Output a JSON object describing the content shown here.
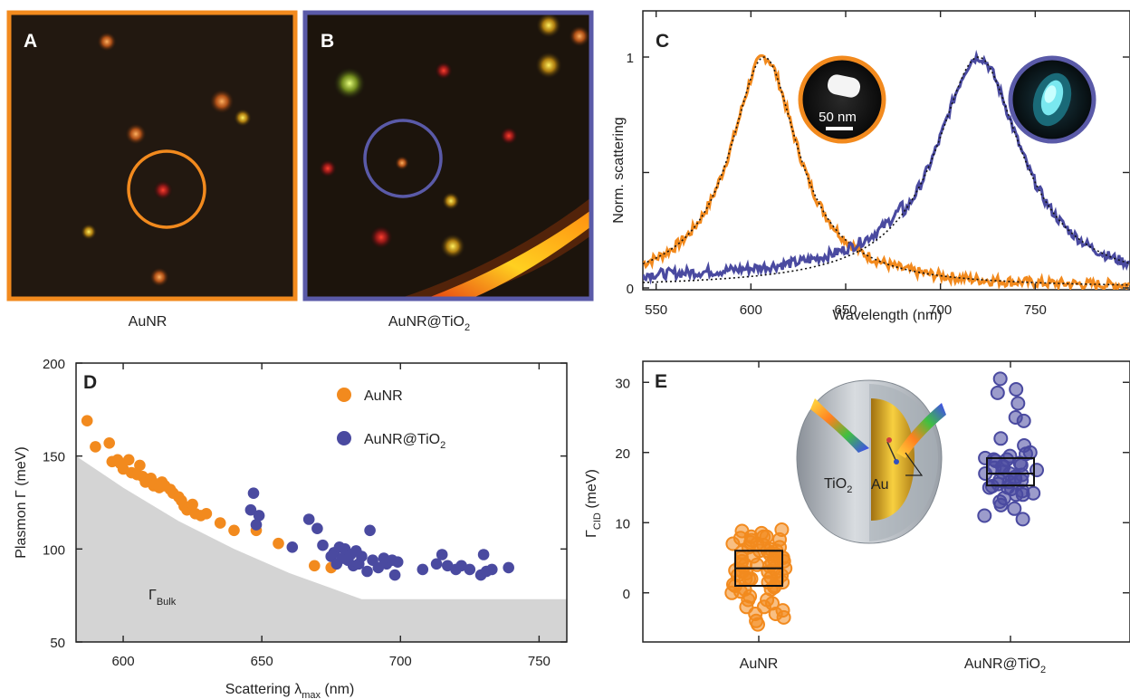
{
  "colors": {
    "orange": "#f28a1e",
    "purple": "#4a4aa0",
    "shade": "#d4d4d4",
    "frame_orange": "#f28a1e",
    "frame_purple": "#5a5aa8"
  },
  "panelA": {
    "letter": "A",
    "caption": "AuNR"
  },
  "panelB": {
    "letter": "B",
    "caption_main": "AuNR@TiO",
    "caption_sub": "2"
  },
  "panelC": {
    "letter": "C",
    "scale_label": "50 nm",
    "ylabel": "Norm. scattering",
    "xlabel": "Wavelength (nm)",
    "yticks": [
      "0",
      "1"
    ],
    "xticks": [
      "550",
      "600",
      "650",
      "700",
      "750"
    ]
  },
  "panelD": {
    "letter": "D",
    "ylabel": "Plasmon Γ (meV)",
    "xlabel_main": "Scattering λ",
    "xlabel_sub": "max",
    "xlabel_tail": " (nm)",
    "bulk_main": "Γ",
    "bulk_sub": "Bulk",
    "legend": {
      "aunr": "AuNR",
      "tio2_main": "AuNR@TiO",
      "tio2_sub": "2"
    },
    "yticks": [
      "50",
      "100",
      "150",
      "200"
    ],
    "xticks": [
      "600",
      "650",
      "700",
      "750"
    ]
  },
  "panelE": {
    "letter": "E",
    "ylabel_main": "Γ",
    "ylabel_sub": "CID",
    "ylabel_tail": " (meV)",
    "yticks": [
      "0",
      "10",
      "20",
      "30"
    ],
    "xcat1": "AuNR",
    "xcat2_main": "AuNR@TiO",
    "xcat2_sub": "2",
    "inset_tio2_main": "TiO",
    "inset_tio2_sub": "2",
    "inset_au": "Au"
  },
  "chart_data": [
    {
      "type": "line",
      "panel": "C",
      "xlabel": "Wavelength (nm)",
      "ylabel": "Norm. scattering",
      "xlim": [
        543,
        800
      ],
      "ylim": [
        0,
        1.1
      ],
      "series": [
        {
          "name": "AuNR",
          "type": "lorentzian",
          "center": 607,
          "fwhm": 44,
          "baseline": 0.0
        },
        {
          "name": "AuNR@TiO2",
          "type": "lorentzian",
          "center": 720,
          "fwhm": 55,
          "baseline": 0.0
        }
      ]
    },
    {
      "type": "scatter",
      "panel": "D",
      "xlabel": "Scattering λmax (nm)",
      "ylabel": "Plasmon Γ (meV)",
      "xlim": [
        583,
        760
      ],
      "ylim": [
        50,
        200
      ],
      "series": [
        {
          "name": "AuNR",
          "points": [
            [
              587,
              169
            ],
            [
              590,
              155
            ],
            [
              595,
              157
            ],
            [
              596,
              147
            ],
            [
              598,
              148
            ],
            [
              599,
              146
            ],
            [
              600,
              143
            ],
            [
              602,
              148
            ],
            [
              603,
              141
            ],
            [
              605,
              140
            ],
            [
              606,
              145
            ],
            [
              607,
              139
            ],
            [
              608,
              136
            ],
            [
              610,
              138
            ],
            [
              611,
              134
            ],
            [
              612,
              135
            ],
            [
              613,
              133
            ],
            [
              614,
              136
            ],
            [
              615,
              134
            ],
            [
              617,
              132
            ],
            [
              618,
              130
            ],
            [
              620,
              128
            ],
            [
              621,
              126
            ],
            [
              622,
              123
            ],
            [
              623,
              121
            ],
            [
              625,
              124
            ],
            [
              626,
              119
            ],
            [
              628,
              118
            ],
            [
              630,
              119
            ],
            [
              635,
              114
            ],
            [
              640,
              110
            ],
            [
              648,
              110
            ],
            [
              656,
              103
            ],
            [
              669,
              91
            ],
            [
              675,
              90
            ]
          ]
        },
        {
          "name": "AuNR@TiO2",
          "points": [
            [
              647,
              130
            ],
            [
              646,
              121
            ],
            [
              649,
              118
            ],
            [
              648,
              113
            ],
            [
              661,
              101
            ],
            [
              667,
              116
            ],
            [
              670,
              111
            ],
            [
              672,
              102
            ],
            [
              675,
              96
            ],
            [
              676,
              98
            ],
            [
              677,
              92
            ],
            [
              678,
              101
            ],
            [
              679,
              95
            ],
            [
              680,
              100
            ],
            [
              681,
              94
            ],
            [
              682,
              97
            ],
            [
              683,
              91
            ],
            [
              684,
              99
            ],
            [
              685,
              92
            ],
            [
              686,
              96
            ],
            [
              688,
              88
            ],
            [
              689,
              110
            ],
            [
              690,
              94
            ],
            [
              692,
              90
            ],
            [
              694,
              95
            ],
            [
              695,
              92
            ],
            [
              697,
              94
            ],
            [
              698,
              86
            ],
            [
              699,
              93
            ],
            [
              708,
              89
            ],
            [
              713,
              92
            ],
            [
              715,
              97
            ],
            [
              717,
              91
            ],
            [
              720,
              89
            ],
            [
              722,
              91
            ],
            [
              725,
              89
            ],
            [
              729,
              86
            ],
            [
              730,
              97
            ],
            [
              731,
              88
            ],
            [
              733,
              89
            ],
            [
              739,
              90
            ]
          ]
        }
      ],
      "bulk_curve": [
        [
          583,
          150
        ],
        [
          600,
          133
        ],
        [
          620,
          115
        ],
        [
          640,
          100
        ],
        [
          660,
          87
        ],
        [
          675,
          79
        ],
        [
          686,
          73
        ],
        [
          760,
          73
        ]
      ]
    },
    {
      "type": "box-scatter",
      "panel": "E",
      "ylabel": "ΓCID (meV)",
      "ylim": [
        -7,
        33
      ],
      "categories": [
        "AuNR",
        "AuNR@TiO2"
      ],
      "boxes": [
        {
          "name": "AuNR",
          "q1": 1.0,
          "median": 3.5,
          "q3": 6.0
        },
        {
          "name": "AuNR@TiO2",
          "q1": 15.3,
          "median": 17.0,
          "q3": 19.2
        }
      ],
      "series": [
        {
          "name": "AuNR",
          "values": [
            9,
            8.5,
            8,
            8,
            7.8,
            7.5,
            7.2,
            7,
            6.8,
            6.5,
            6.5,
            6.2,
            6,
            6,
            5.8,
            5.5,
            5.5,
            5.2,
            5,
            5,
            4.8,
            4.5,
            4.5,
            4.2,
            4,
            4,
            3.8,
            3.5,
            3.5,
            3.2,
            3,
            3,
            2.8,
            2.5,
            2.5,
            2.2,
            2,
            2,
            1.8,
            1.5,
            1.5,
            1.2,
            1,
            0.8,
            0.5,
            0.2,
            0,
            -0.5,
            -1,
            -1.5,
            -2,
            -2.5,
            -3,
            -3.5,
            -4,
            -4.5,
            -3,
            -2,
            -1,
            0.5,
            1,
            2,
            3,
            4,
            5,
            6,
            7,
            8,
            8.8,
            7.6
          ]
        },
        {
          "name": "AuNR@TiO2",
          "values": [
            30.5,
            29,
            28.5,
            27,
            25,
            24.5,
            22,
            21,
            20,
            19.8,
            19.5,
            19.2,
            19,
            18.8,
            18.5,
            18.2,
            18,
            17.8,
            17.5,
            17.2,
            17,
            16.8,
            16.5,
            16.2,
            16,
            15.8,
            15.5,
            15.2,
            15,
            14.8,
            14.5,
            14.2,
            14,
            13.5,
            13,
            12.5,
            12,
            11,
            10.5,
            16,
            17,
            18,
            19,
            15,
            14
          ]
        }
      ]
    }
  ]
}
